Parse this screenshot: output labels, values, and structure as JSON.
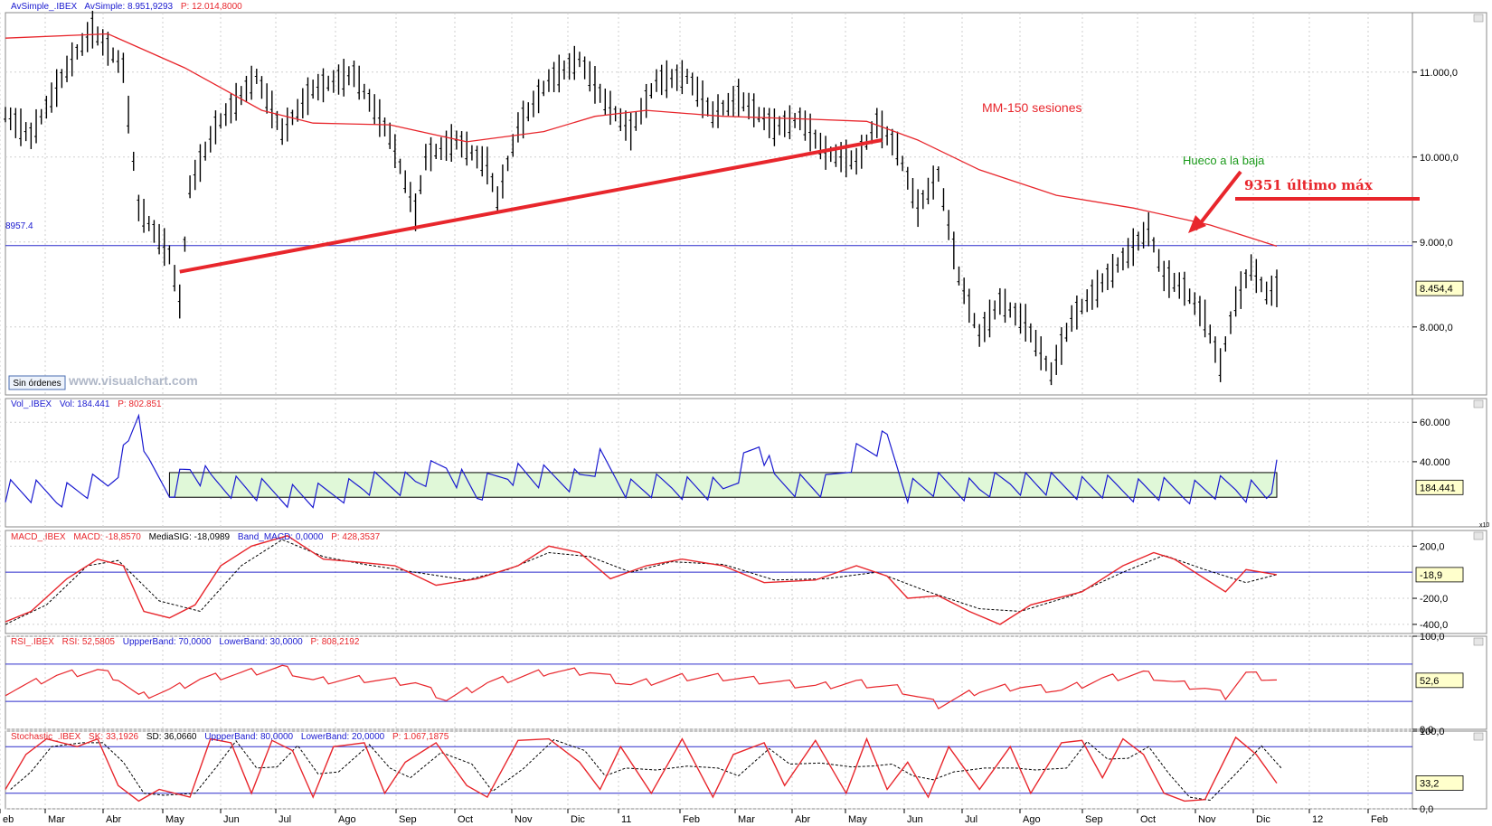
{
  "header": {
    "price": {
      "name": "AvSimple_.IBEX",
      "seg2": "AvSimple: 8.951,9293",
      "seg3": "P: 12.014,8000"
    },
    "volume": {
      "name": "Vol_.IBEX",
      "seg2": "Vol: 184.441",
      "seg3": "P: 802.851"
    },
    "macd": {
      "name": "MACD_.IBEX",
      "seg2": "MACD: -18,8570",
      "seg3": "MediaSIG: -18,0989",
      "seg4": "Band_MACD: 0,0000",
      "seg5": "P: 428,3537"
    },
    "rsi": {
      "name": "RSI_.IBEX",
      "seg2": "RSI: 52,5805",
      "seg3": "UppperBand: 70,0000",
      "seg4": "LowerBand: 30,0000",
      "seg5": "P: 808,2192"
    },
    "stoch": {
      "name": "Stochastic_.IBEX",
      "seg2": "SK: 33,1926",
      "seg3": "SD: 36,0660",
      "seg4": "UppperBand: 80,0000",
      "seg5": "LowerBand: 20,0000",
      "seg6": "P: 1.067,1875"
    }
  },
  "buttons": {
    "sin_ordenes": "Sin órdenes"
  },
  "watermark": "www.visualchart.com",
  "colors": {
    "price": "#000000",
    "ma": "#e8262c",
    "trendline": "#e8262c",
    "hline": "#2b2bcc",
    "volume": "#1a1ad0",
    "vol_box": "#e0f8d8",
    "macd": "#e8262c",
    "signal": "#000000",
    "rsi": "#e8262c",
    "stoch": "#e8262c",
    "annotation_green": "#1a9a1a"
  },
  "chart_data": [
    {
      "type": "line",
      "name": "price",
      "title": "AvSimple_.IBEX",
      "x_labels": [
        "eb",
        "Mar",
        "Abr",
        "May",
        "Jun",
        "Jul",
        "Ago",
        "Sep",
        "Oct",
        "Nov",
        "Dic",
        "11",
        "Feb",
        "Mar",
        "Abr",
        "May",
        "Jun",
        "Jul",
        "Ago",
        "Sep",
        "Oct",
        "Nov",
        "Dic",
        "12",
        "Feb"
      ],
      "y_ticks": [
        "8.000,0",
        "9.000,0",
        "10.000,0",
        "11.000,0"
      ],
      "y_tick_values": [
        8000,
        9000,
        10000,
        11000
      ],
      "ylim": [
        7200,
        11700
      ],
      "close_points": [
        [
          0,
          10500
        ],
        [
          5,
          10250
        ],
        [
          13,
          11150
        ],
        [
          17,
          11500
        ],
        [
          23,
          11050
        ],
        [
          26,
          9400
        ],
        [
          32,
          8850
        ],
        [
          34,
          8300
        ],
        [
          36,
          9650
        ],
        [
          41,
          10350
        ],
        [
          49,
          10950
        ],
        [
          54,
          10300
        ],
        [
          60,
          10800
        ],
        [
          68,
          10980
        ],
        [
          75,
          10250
        ],
        [
          80,
          9350
        ],
        [
          82,
          10000
        ],
        [
          88,
          10200
        ],
        [
          94,
          9900
        ],
        [
          96,
          9500
        ],
        [
          100,
          10350
        ],
        [
          106,
          10900
        ],
        [
          112,
          11150
        ],
        [
          117,
          10650
        ],
        [
          122,
          10300
        ],
        [
          127,
          10900
        ],
        [
          133,
          10950
        ],
        [
          138,
          10500
        ],
        [
          143,
          10700
        ],
        [
          150,
          10350
        ],
        [
          155,
          10450
        ],
        [
          160,
          10050
        ],
        [
          166,
          9950
        ],
        [
          170,
          10400
        ],
        [
          174,
          10100
        ],
        [
          178,
          9400
        ],
        [
          182,
          9800
        ],
        [
          186,
          8600
        ],
        [
          190,
          7900
        ],
        [
          194,
          8300
        ],
        [
          199,
          8050
        ],
        [
          204,
          7450
        ],
        [
          208,
          8100
        ],
        [
          213,
          8450
        ],
        [
          218,
          8800
        ],
        [
          223,
          9150
        ],
        [
          226,
          8600
        ],
        [
          230,
          8450
        ],
        [
          234,
          8100
        ],
        [
          237,
          7550
        ],
        [
          240,
          8300
        ],
        [
          243,
          8700
        ],
        [
          246,
          8400
        ],
        [
          248,
          8454
        ]
      ],
      "ma_label": "AvSimple: 8.951,9293",
      "ma_points": [
        [
          0,
          11400
        ],
        [
          20,
          11450
        ],
        [
          35,
          11050
        ],
        [
          50,
          10550
        ],
        [
          60,
          10400
        ],
        [
          75,
          10380
        ],
        [
          90,
          10180
        ],
        [
          105,
          10300
        ],
        [
          115,
          10480
        ],
        [
          125,
          10550
        ],
        [
          140,
          10480
        ],
        [
          155,
          10450
        ],
        [
          168,
          10420
        ],
        [
          178,
          10200
        ],
        [
          190,
          9850
        ],
        [
          205,
          9550
        ],
        [
          220,
          9400
        ],
        [
          235,
          9200
        ],
        [
          248,
          8951
        ]
      ],
      "trendline": {
        "from": [
          34,
          8650
        ],
        "to": [
          171,
          10200
        ]
      },
      "horizontal_line": {
        "value": 8957.4,
        "label": "8957.4"
      },
      "last_value_label": "8.454,4",
      "annotations": [
        "MM-150 sesiones",
        "Hueco a la baja",
        "9351 último máx"
      ]
    },
    {
      "type": "line",
      "name": "volume",
      "title": "Vol_.IBEX",
      "y_ticks": [
        "40.000",
        "60.000"
      ],
      "y_tick_values": [
        40000,
        60000
      ],
      "ylim": [
        7000,
        72000
      ],
      "band": [
        22000,
        34500
      ],
      "points": [
        [
          0,
          26000
        ],
        [
          10,
          23000
        ],
        [
          20,
          29000
        ],
        [
          24,
          48000
        ],
        [
          26,
          66000
        ],
        [
          28,
          35000
        ],
        [
          32,
          26000
        ],
        [
          36,
          36000
        ],
        [
          40,
          30000
        ],
        [
          50,
          25000
        ],
        [
          60,
          22000
        ],
        [
          70,
          28000
        ],
        [
          80,
          30000
        ],
        [
          86,
          38000
        ],
        [
          92,
          24000
        ],
        [
          98,
          35000
        ],
        [
          104,
          32000
        ],
        [
          112,
          31000
        ],
        [
          116,
          40000
        ],
        [
          122,
          26000
        ],
        [
          130,
          28000
        ],
        [
          140,
          25000
        ],
        [
          147,
          50000
        ],
        [
          150,
          30000
        ],
        [
          160,
          27000
        ],
        [
          166,
          44000
        ],
        [
          172,
          50000
        ],
        [
          176,
          26000
        ],
        [
          182,
          28000
        ],
        [
          190,
          26000
        ],
        [
          196,
          30000
        ],
        [
          204,
          28000
        ],
        [
          212,
          27000
        ],
        [
          222,
          26000
        ],
        [
          230,
          25000
        ],
        [
          240,
          27000
        ],
        [
          246,
          24000
        ],
        [
          248,
          34500
        ]
      ],
      "last_value_label": "184.441",
      "scale_label": "x10"
    },
    {
      "type": "line",
      "name": "macd",
      "title": "MACD_.IBEX",
      "y_ticks": [
        "200,0",
        "-200,0",
        "-400,0"
      ],
      "y_tick_values": [
        200,
        -200,
        -400
      ],
      "ylim": [
        -470,
        320
      ],
      "zero_line": 0,
      "macd_points": [
        [
          0,
          -380
        ],
        [
          5,
          -300
        ],
        [
          12,
          -50
        ],
        [
          18,
          100
        ],
        [
          23,
          50
        ],
        [
          27,
          -300
        ],
        [
          32,
          -350
        ],
        [
          37,
          -250
        ],
        [
          42,
          50
        ],
        [
          48,
          200
        ],
        [
          55,
          280
        ],
        [
          62,
          100
        ],
        [
          68,
          80
        ],
        [
          76,
          50
        ],
        [
          84,
          -100
        ],
        [
          92,
          -50
        ],
        [
          100,
          50
        ],
        [
          106,
          200
        ],
        [
          112,
          150
        ],
        [
          118,
          -50
        ],
        [
          125,
          50
        ],
        [
          132,
          100
        ],
        [
          140,
          50
        ],
        [
          148,
          -80
        ],
        [
          158,
          -60
        ],
        [
          166,
          50
        ],
        [
          172,
          -30
        ],
        [
          176,
          -200
        ],
        [
          182,
          -180
        ],
        [
          188,
          -300
        ],
        [
          194,
          -400
        ],
        [
          200,
          -250
        ],
        [
          210,
          -150
        ],
        [
          218,
          50
        ],
        [
          224,
          150
        ],
        [
          228,
          100
        ],
        [
          234,
          -50
        ],
        [
          238,
          -150
        ],
        [
          242,
          20
        ],
        [
          248,
          -19
        ]
      ],
      "signal_points": [
        [
          0,
          -400
        ],
        [
          8,
          -250
        ],
        [
          16,
          50
        ],
        [
          22,
          90
        ],
        [
          30,
          -220
        ],
        [
          38,
          -300
        ],
        [
          46,
          50
        ],
        [
          54,
          250
        ],
        [
          62,
          120
        ],
        [
          70,
          60
        ],
        [
          80,
          0
        ],
        [
          90,
          -60
        ],
        [
          98,
          20
        ],
        [
          106,
          150
        ],
        [
          114,
          120
        ],
        [
          122,
          0
        ],
        [
          130,
          80
        ],
        [
          140,
          60
        ],
        [
          150,
          -60
        ],
        [
          160,
          -50
        ],
        [
          170,
          0
        ],
        [
          180,
          -150
        ],
        [
          190,
          -280
        ],
        [
          198,
          -300
        ],
        [
          208,
          -180
        ],
        [
          218,
          0
        ],
        [
          226,
          130
        ],
        [
          234,
          20
        ],
        [
          242,
          -80
        ],
        [
          248,
          -18
        ]
      ],
      "last_value_label": "-18,9"
    },
    {
      "type": "line",
      "name": "rsi",
      "title": "RSI_.IBEX",
      "y_ticks": [
        "100,0",
        "0,0"
      ],
      "y_tick_values": [
        100,
        0
      ],
      "ylim": [
        0,
        100
      ],
      "bands": [
        30,
        70
      ],
      "points": [
        [
          0,
          40
        ],
        [
          10,
          58
        ],
        [
          18,
          63
        ],
        [
          22,
          55
        ],
        [
          26,
          35
        ],
        [
          32,
          42
        ],
        [
          38,
          54
        ],
        [
          46,
          60
        ],
        [
          54,
          66
        ],
        [
          60,
          52
        ],
        [
          70,
          54
        ],
        [
          80,
          50
        ],
        [
          86,
          32
        ],
        [
          94,
          50
        ],
        [
          106,
          62
        ],
        [
          114,
          62
        ],
        [
          122,
          48
        ],
        [
          132,
          56
        ],
        [
          140,
          56
        ],
        [
          148,
          52
        ],
        [
          158,
          46
        ],
        [
          166,
          50
        ],
        [
          174,
          44
        ],
        [
          182,
          26
        ],
        [
          190,
          42
        ],
        [
          198,
          46
        ],
        [
          206,
          42
        ],
        [
          214,
          54
        ],
        [
          222,
          60
        ],
        [
          228,
          50
        ],
        [
          234,
          44
        ],
        [
          238,
          36
        ],
        [
          242,
          60
        ],
        [
          248,
          53
        ]
      ],
      "last_value_label": "52,6"
    },
    {
      "type": "line",
      "name": "stochastic",
      "title": "Stochastic_.IBEX",
      "y_ticks": [
        "100,0",
        "0,0"
      ],
      "y_tick_values": [
        100,
        0
      ],
      "ylim": [
        0,
        100
      ],
      "bands": [
        20,
        80
      ],
      "sk_points": [
        [
          0,
          25
        ],
        [
          4,
          70
        ],
        [
          8,
          90
        ],
        [
          14,
          80
        ],
        [
          18,
          90
        ],
        [
          22,
          30
        ],
        [
          26,
          10
        ],
        [
          30,
          25
        ],
        [
          36,
          15
        ],
        [
          40,
          90
        ],
        [
          44,
          85
        ],
        [
          48,
          20
        ],
        [
          52,
          88
        ],
        [
          56,
          75
        ],
        [
          60,
          15
        ],
        [
          64,
          80
        ],
        [
          70,
          85
        ],
        [
          74,
          20
        ],
        [
          78,
          60
        ],
        [
          84,
          85
        ],
        [
          90,
          30
        ],
        [
          94,
          15
        ],
        [
          100,
          88
        ],
        [
          106,
          90
        ],
        [
          112,
          60
        ],
        [
          116,
          25
        ],
        [
          120,
          80
        ],
        [
          126,
          20
        ],
        [
          132,
          90
        ],
        [
          138,
          15
        ],
        [
          142,
          70
        ],
        [
          148,
          85
        ],
        [
          152,
          30
        ],
        [
          158,
          88
        ],
        [
          164,
          20
        ],
        [
          168,
          90
        ],
        [
          172,
          25
        ],
        [
          176,
          60
        ],
        [
          180,
          15
        ],
        [
          184,
          80
        ],
        [
          190,
          25
        ],
        [
          196,
          80
        ],
        [
          200,
          20
        ],
        [
          206,
          85
        ],
        [
          210,
          88
        ],
        [
          214,
          40
        ],
        [
          218,
          90
        ],
        [
          222,
          70
        ],
        [
          226,
          20
        ],
        [
          230,
          10
        ],
        [
          234,
          12
        ],
        [
          240,
          92
        ],
        [
          244,
          70
        ],
        [
          248,
          33
        ]
      ],
      "sd_label": "SD: 36,0660",
      "last_value_label": "33,2"
    }
  ]
}
